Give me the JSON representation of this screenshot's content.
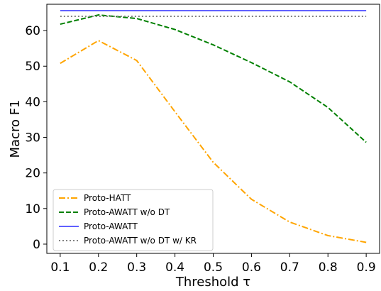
{
  "chart_data": {
    "type": "line",
    "xlabel": "Threshold τ",
    "ylabel": "Macro F1",
    "x": [
      0.1,
      0.2,
      0.3,
      0.4,
      0.5,
      0.6,
      0.7,
      0.8,
      0.9
    ],
    "xticks": [
      "0.1",
      "0.2",
      "0.3",
      "0.4",
      "0.5",
      "0.6",
      "0.7",
      "0.8",
      "0.9"
    ],
    "xlim": [
      0.065,
      0.935
    ],
    "yticks": [
      0,
      10,
      20,
      30,
      40,
      50,
      60
    ],
    "ylim": [
      -2.6,
      67.4
    ],
    "grid": false,
    "legend_position": "lower-left",
    "series": [
      {
        "name": "Proto-HATT",
        "color": "#ffa500",
        "style": "dashdot",
        "values": [
          50.8,
          57.2,
          51.6,
          37.2,
          23.0,
          12.6,
          6.2,
          2.4,
          0.5
        ]
      },
      {
        "name": "Proto-AWATT w/o DT",
        "color": "#008000",
        "style": "dashed",
        "values": [
          61.8,
          64.4,
          63.4,
          60.3,
          56.0,
          51.0,
          45.6,
          38.4,
          28.6
        ]
      },
      {
        "name": "Proto-AWATT",
        "color": "#0000ff",
        "style": "solid",
        "values": [
          65.6,
          65.6,
          65.6,
          65.6,
          65.6,
          65.6,
          65.6,
          65.6,
          65.6
        ]
      },
      {
        "name": "Proto-AWATT w/o DT w/ KR",
        "color": "#808080",
        "style": "dotted",
        "values": [
          64.0,
          64.0,
          64.0,
          64.0,
          64.0,
          64.0,
          64.0,
          64.0,
          64.0
        ]
      }
    ]
  }
}
